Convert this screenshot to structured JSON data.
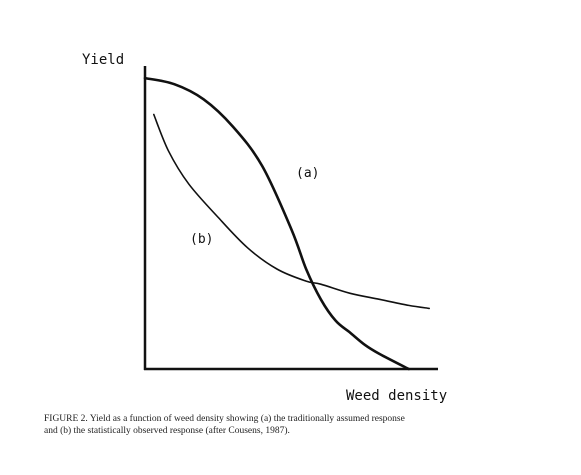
{
  "chart_data": {
    "type": "line",
    "title": "",
    "xlabel": "Weed density",
    "ylabel": "Yield",
    "axes_ticks": "none",
    "grid": false,
    "legend": "none (curves labelled inline)",
    "xlim": [
      0,
      100
    ],
    "ylim": [
      0,
      100
    ],
    "series": [
      {
        "name": "(a)",
        "x": [
          0,
          10,
          20,
          30,
          40,
          50,
          55,
          60,
          65,
          70,
          75,
          80,
          90
        ],
        "y": [
          96,
          94,
          89,
          80,
          67,
          46,
          33,
          23,
          16,
          12,
          8,
          5,
          0
        ]
      },
      {
        "name": "(b)",
        "x": [
          3,
          8,
          15,
          25,
          35,
          45,
          55,
          60,
          70,
          80,
          90,
          97
        ],
        "y": [
          84,
          72,
          61,
          50,
          40,
          33,
          29,
          28,
          25,
          23,
          21,
          20
        ]
      }
    ],
    "annotations": [
      "(a)",
      "(b)"
    ]
  },
  "caption": {
    "line1": "FIGURE 2.   Yield as a function of weed density showing (a) the traditionally assumed response",
    "line2": "and (b) the statistically observed response (after Cousens, 1987)."
  }
}
